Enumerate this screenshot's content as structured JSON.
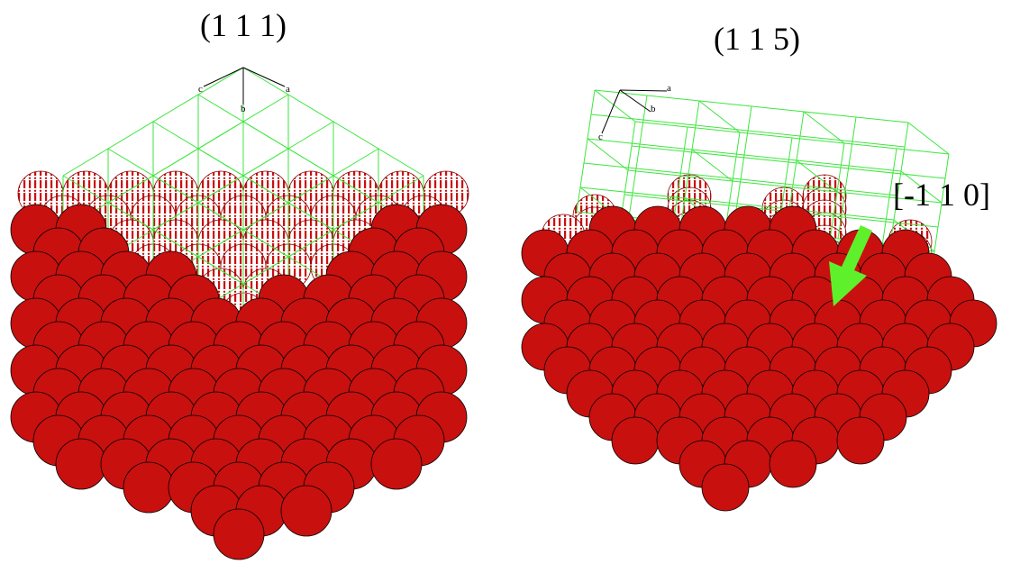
{
  "panels": [
    {
      "title": "(1 1 1)",
      "axes": [
        "a",
        "b",
        "c"
      ]
    },
    {
      "title": "(1 1 5)",
      "axes": [
        "a",
        "b",
        "c"
      ],
      "direction": "[-1 1 0]"
    }
  ]
}
